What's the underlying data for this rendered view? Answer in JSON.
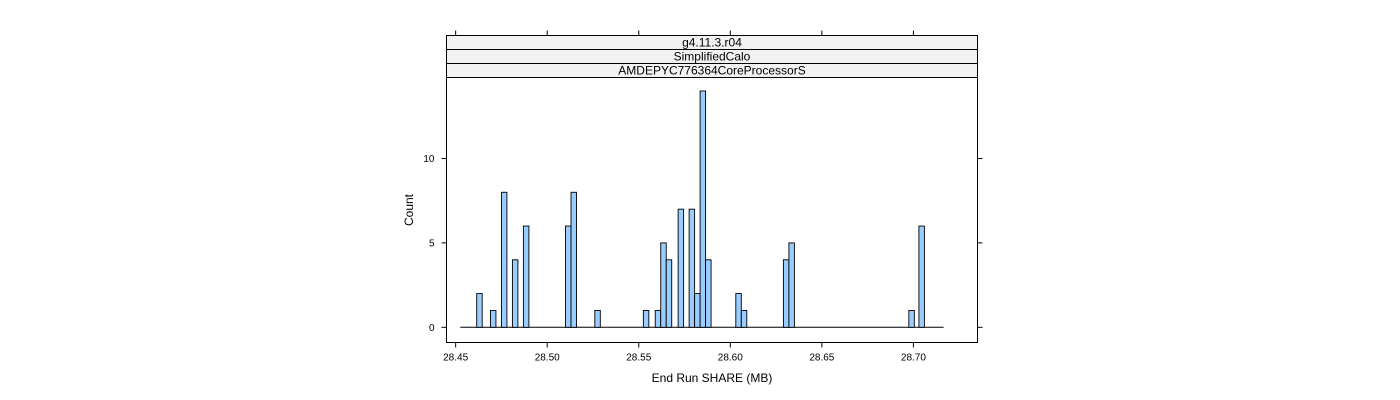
{
  "chart_data": {
    "type": "bar",
    "strips": [
      "g4.11.3.r04",
      "SimplifiedCalo",
      "AMDEPYC776364CoreProcessorS"
    ],
    "xlabel": "End Run SHARE (MB)",
    "ylabel": "Count",
    "xlim": [
      28.445,
      28.735
    ],
    "ylim": [
      -0.9,
      14.8
    ],
    "x_ticks": [
      28.45,
      28.5,
      28.55,
      28.6,
      28.65,
      28.7
    ],
    "x_tick_labels": [
      "28.45",
      "28.50",
      "28.55",
      "28.60",
      "28.65",
      "28.70"
    ],
    "y_ticks": [
      0,
      5,
      10
    ],
    "y_tick_labels": [
      "0",
      "5",
      "10"
    ],
    "bin_width": 0.003,
    "baseline_range": [
      28.4525,
      28.7165
    ],
    "bar_color": "#99CCFF",
    "bins": [
      {
        "x": 28.463,
        "count": 2
      },
      {
        "x": 28.4705,
        "count": 1
      },
      {
        "x": 28.4765,
        "count": 8
      },
      {
        "x": 28.4825,
        "count": 4
      },
      {
        "x": 28.4885,
        "count": 6
      },
      {
        "x": 28.5115,
        "count": 6
      },
      {
        "x": 28.5145,
        "count": 8
      },
      {
        "x": 28.5275,
        "count": 1
      },
      {
        "x": 28.554,
        "count": 1
      },
      {
        "x": 28.5605,
        "count": 1
      },
      {
        "x": 28.5635,
        "count": 5
      },
      {
        "x": 28.5665,
        "count": 4
      },
      {
        "x": 28.573,
        "count": 7
      },
      {
        "x": 28.579,
        "count": 7
      },
      {
        "x": 28.582,
        "count": 2
      },
      {
        "x": 28.585,
        "count": 14
      },
      {
        "x": 28.588,
        "count": 4
      },
      {
        "x": 28.6045,
        "count": 2
      },
      {
        "x": 28.6075,
        "count": 1
      },
      {
        "x": 28.6305,
        "count": 4
      },
      {
        "x": 28.6335,
        "count": 5
      },
      {
        "x": 28.699,
        "count": 1
      },
      {
        "x": 28.7045,
        "count": 6
      }
    ]
  }
}
